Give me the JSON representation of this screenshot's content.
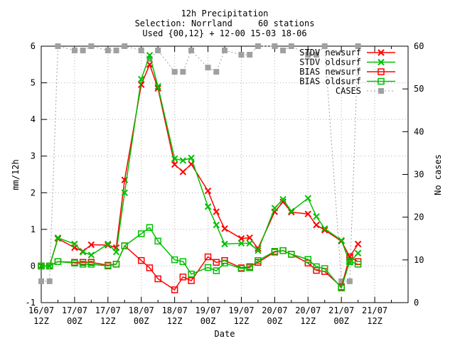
{
  "chart_data": {
    "type": "line",
    "title_lines": [
      "12h Precipitation",
      "Selection: Norrland     60 stations",
      "Used {00,12} + 12-00 15-03 18-06"
    ],
    "xlabel": "Date",
    "ylabel": "mm/12h",
    "y2label": "No cases",
    "x_domain": [
      0,
      22
    ],
    "ylim": [
      -1,
      6
    ],
    "y2lim": [
      0,
      60
    ],
    "yticks": [
      -1,
      0,
      1,
      2,
      3,
      4,
      5,
      6
    ],
    "y2ticks": [
      0,
      10,
      20,
      30,
      40,
      50,
      60
    ],
    "xticks": [
      {
        "x": 0,
        "l1": "16/07",
        "l2": "12Z"
      },
      {
        "x": 2,
        "l1": "17/07",
        "l2": "00Z"
      },
      {
        "x": 4,
        "l1": "17/07",
        "l2": "12Z"
      },
      {
        "x": 6,
        "l1": "18/07",
        "l2": "00Z"
      },
      {
        "x": 8,
        "l1": "18/07",
        "l2": "12Z"
      },
      {
        "x": 10,
        "l1": "19/07",
        "l2": "00Z"
      },
      {
        "x": 12,
        "l1": "19/07",
        "l2": "12Z"
      },
      {
        "x": 14,
        "l1": "20/07",
        "l2": "00Z"
      },
      {
        "x": 16,
        "l1": "20/07",
        "l2": "12Z"
      },
      {
        "x": 18,
        "l1": "21/07",
        "l2": "00Z"
      },
      {
        "x": 20,
        "l1": "21/07",
        "l2": "12Z"
      }
    ],
    "legend": {
      "placement": "top-right"
    },
    "series": [
      {
        "name": "STDV newsurf",
        "color": "#ff0000",
        "marker": "x",
        "axis": "y1",
        "points": [
          [
            0,
            0
          ],
          [
            0.5,
            0
          ],
          [
            1,
            0.75
          ],
          [
            2,
            0.5
          ],
          [
            2.5,
            0.4
          ],
          [
            3,
            0.58
          ],
          [
            4,
            0.57
          ],
          [
            4.5,
            0.5
          ],
          [
            5,
            2.35
          ],
          [
            6,
            4.95
          ],
          [
            6.5,
            5.5
          ],
          [
            7,
            4.85
          ],
          [
            8,
            2.77
          ],
          [
            8.5,
            2.57
          ],
          [
            9,
            2.78
          ],
          [
            10,
            2.05
          ],
          [
            10.5,
            1.48
          ],
          [
            11,
            1.02
          ],
          [
            12,
            0.75
          ],
          [
            12.5,
            0.77
          ],
          [
            13,
            0.48
          ],
          [
            14,
            1.48
          ],
          [
            14.5,
            1.75
          ],
          [
            15,
            1.47
          ],
          [
            16,
            1.42
          ],
          [
            16.5,
            1.12
          ],
          [
            17,
            0.98
          ],
          [
            18,
            0.68
          ],
          [
            18.5,
            0.25
          ],
          [
            19,
            0.6
          ]
        ]
      },
      {
        "name": "STDV oldsurf",
        "color": "#00c000",
        "marker": "x",
        "axis": "y1",
        "points": [
          [
            0,
            0
          ],
          [
            0.5,
            0
          ],
          [
            1,
            0.77
          ],
          [
            2,
            0.6
          ],
          [
            2.5,
            0.38
          ],
          [
            3,
            0.3
          ],
          [
            4,
            0.6
          ],
          [
            4.5,
            0.38
          ],
          [
            5,
            2.0
          ],
          [
            6,
            5.1
          ],
          [
            6.5,
            5.75
          ],
          [
            7,
            4.9
          ],
          [
            8,
            2.93
          ],
          [
            8.5,
            2.88
          ],
          [
            9,
            2.95
          ],
          [
            10,
            1.62
          ],
          [
            10.5,
            1.12
          ],
          [
            11,
            0.6
          ],
          [
            12,
            0.62
          ],
          [
            12.5,
            0.62
          ],
          [
            13,
            0.42
          ],
          [
            14,
            1.58
          ],
          [
            14.5,
            1.82
          ],
          [
            15,
            1.5
          ],
          [
            16,
            1.85
          ],
          [
            16.5,
            1.35
          ],
          [
            17,
            1.02
          ],
          [
            18,
            0.7
          ],
          [
            18.5,
            0.1
          ],
          [
            19,
            0.35
          ]
        ]
      },
      {
        "name": "BIAS newsurf",
        "color": "#ff0000",
        "marker": "sq",
        "axis": "y1",
        "points": [
          [
            0,
            0
          ],
          [
            0.5,
            0
          ],
          [
            1,
            0.12
          ],
          [
            2,
            0.1
          ],
          [
            2.5,
            0.1
          ],
          [
            3,
            0.1
          ],
          [
            4,
            0.02
          ],
          [
            4.5,
            0.05
          ],
          [
            5,
            0.55
          ],
          [
            6,
            0.15
          ],
          [
            6.5,
            -0.05
          ],
          [
            7,
            -0.35
          ],
          [
            8,
            -0.65
          ],
          [
            8.5,
            -0.3
          ],
          [
            9,
            -0.4
          ],
          [
            10,
            0.25
          ],
          [
            10.5,
            0.1
          ],
          [
            11,
            0.15
          ],
          [
            12,
            -0.05
          ],
          [
            12.5,
            -0.02
          ],
          [
            13,
            0.1
          ],
          [
            14,
            0.38
          ],
          [
            14.5,
            0.42
          ],
          [
            15,
            0.32
          ],
          [
            16,
            0.08
          ],
          [
            16.5,
            -0.12
          ],
          [
            17,
            -0.15
          ],
          [
            18,
            -0.57
          ],
          [
            18.5,
            0.25
          ],
          [
            19,
            0.12
          ]
        ]
      },
      {
        "name": "BIAS oldsurf",
        "color": "#00c000",
        "marker": "sq",
        "axis": "y1",
        "points": [
          [
            0,
            0
          ],
          [
            0.5,
            0
          ],
          [
            1,
            0.12
          ],
          [
            2,
            0.08
          ],
          [
            2.5,
            0.05
          ],
          [
            3,
            0.05
          ],
          [
            4,
            0
          ],
          [
            4.5,
            0.05
          ],
          [
            5,
            0.55
          ],
          [
            6,
            0.88
          ],
          [
            6.5,
            1.05
          ],
          [
            7,
            0.68
          ],
          [
            8,
            0.17
          ],
          [
            8.5,
            0.12
          ],
          [
            9,
            -0.22
          ],
          [
            10,
            -0.04
          ],
          [
            10.5,
            -0.13
          ],
          [
            11,
            0.08
          ],
          [
            12,
            -0.07
          ],
          [
            12.5,
            -0.05
          ],
          [
            13,
            0.15
          ],
          [
            14,
            0.4
          ],
          [
            14.5,
            0.42
          ],
          [
            15,
            0.32
          ],
          [
            16,
            0.18
          ],
          [
            16.5,
            -0.02
          ],
          [
            17,
            -0.07
          ],
          [
            18,
            -0.6
          ],
          [
            18.5,
            0.12
          ],
          [
            19,
            0.05
          ]
        ]
      },
      {
        "name": "CASES",
        "color": "#a0a0a0",
        "marker": "filled-sq",
        "axis": "y2",
        "dashed": true,
        "points": [
          [
            0,
            5
          ],
          [
            0.5,
            5
          ],
          [
            1,
            60
          ],
          [
            2,
            59
          ],
          [
            2.5,
            59
          ],
          [
            3,
            60
          ],
          [
            4,
            59
          ],
          [
            4.5,
            59
          ],
          [
            5,
            60
          ],
          [
            6,
            59
          ],
          [
            6.5,
            57
          ],
          [
            7,
            59
          ],
          [
            8,
            54
          ],
          [
            8.5,
            54
          ],
          [
            9,
            59
          ],
          [
            10,
            55
          ],
          [
            10.5,
            54
          ],
          [
            11,
            59
          ],
          [
            12,
            58
          ],
          [
            12.5,
            58
          ],
          [
            13,
            60
          ],
          [
            14,
            60
          ],
          [
            14.5,
            59
          ],
          [
            15,
            60
          ],
          [
            16,
            58
          ],
          [
            16.5,
            58
          ],
          [
            17,
            60
          ],
          [
            18,
            5
          ],
          [
            18.5,
            5
          ],
          [
            19,
            60
          ]
        ]
      }
    ]
  }
}
